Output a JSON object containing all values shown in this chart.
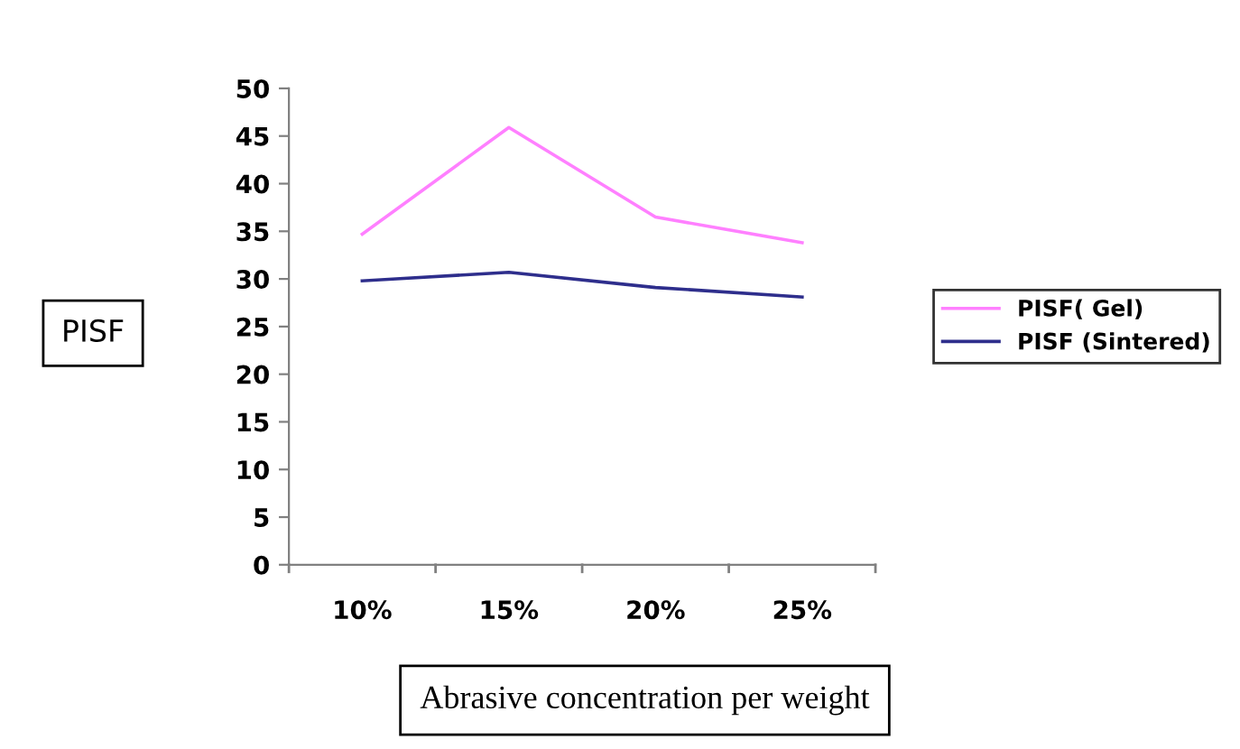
{
  "chart_data": {
    "type": "line",
    "ylabel": "PISF",
    "xlabel": "Abrasive concentration per weight",
    "categories": [
      "10%",
      "15%",
      "20%",
      "25%"
    ],
    "series": [
      {
        "name": "PISF( Gel)",
        "color": "#ff80ff",
        "values": [
          34.7,
          45.9,
          36.5,
          33.8
        ]
      },
      {
        "name": "PISF (Sintered)",
        "color": "#2e2e8c",
        "values": [
          29.8,
          30.7,
          29.1,
          28.1
        ]
      }
    ],
    "ylim": [
      0,
      50
    ],
    "yticks": [
      0,
      5,
      10,
      15,
      20,
      25,
      30,
      35,
      40,
      45,
      50
    ],
    "grid": false,
    "legend": "right",
    "marker": "none",
    "line_style": "solid"
  }
}
